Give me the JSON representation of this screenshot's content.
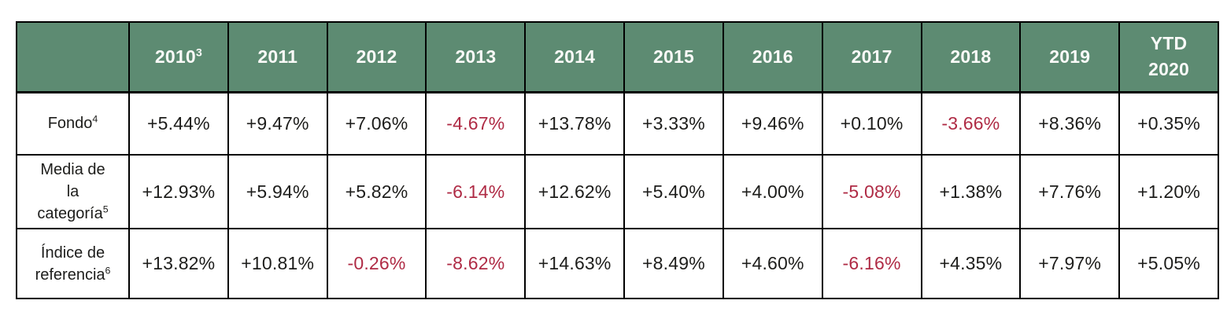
{
  "colors": {
    "header_bg": "#5D8B72",
    "header_text": "#FAFAF8",
    "value_text": "#1D1D1B",
    "negative_text": "#AF2B45",
    "border": "#000000",
    "page_bg": "#FFFFFF"
  },
  "table": {
    "corner_label": "",
    "years": [
      {
        "label": "2010",
        "sup": "3"
      },
      {
        "label": "2011",
        "sup": ""
      },
      {
        "label": "2012",
        "sup": ""
      },
      {
        "label": "2013",
        "sup": ""
      },
      {
        "label": "2014",
        "sup": ""
      },
      {
        "label": "2015",
        "sup": ""
      },
      {
        "label": "2016",
        "sup": ""
      },
      {
        "label": "2017",
        "sup": ""
      },
      {
        "label": "2018",
        "sup": ""
      },
      {
        "label": "2019",
        "sup": ""
      },
      {
        "label": "YTD\n2020",
        "sup": ""
      }
    ],
    "rows": [
      {
        "label": "Fondo",
        "sup": "4",
        "values": [
          "+5.44%",
          "+9.47%",
          "+7.06%",
          "-4.67%",
          "+13.78%",
          "+3.33%",
          "+9.46%",
          "+0.10%",
          "-3.66%",
          "+8.36%",
          "+0.35%"
        ]
      },
      {
        "label": "Media de\nla\ncategoría",
        "sup": "5",
        "values": [
          "+12.93%",
          "+5.94%",
          "+5.82%",
          "-6.14%",
          "+12.62%",
          "+5.40%",
          "+4.00%",
          "-5.08%",
          "+1.38%",
          "+7.76%",
          "+1.20%"
        ]
      },
      {
        "label": "Índice de\nreferencia",
        "sup": "6",
        "values": [
          "+13.82%",
          "+10.81%",
          "-0.26%",
          "-8.62%",
          "+14.63%",
          "+8.49%",
          "+4.60%",
          "-6.16%",
          "+4.35%",
          "+7.97%",
          "+5.05%"
        ]
      }
    ]
  }
}
